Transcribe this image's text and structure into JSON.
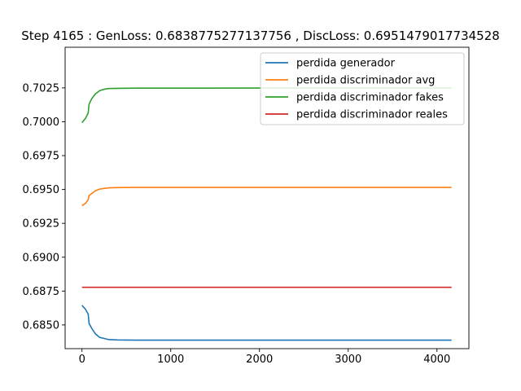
{
  "chart_data": {
    "type": "line",
    "title": "Step 4165 : GenLoss: 0.6838775277137756 , DiscLoss: 0.6951479017734528",
    "xlabel": "",
    "ylabel": "",
    "xlim": [
      -190,
      4360
    ],
    "ylim": [
      0.68325,
      0.7055
    ],
    "xticks": [
      0,
      1000,
      2000,
      3000,
      4000
    ],
    "xtick_labels": [
      "0",
      "1000",
      "2000",
      "3000",
      "4000"
    ],
    "yticks": [
      0.685,
      0.6875,
      0.69,
      0.6925,
      0.695,
      0.6975,
      0.7,
      0.7025
    ],
    "ytick_labels": [
      "0.6850",
      "0.6875",
      "0.6900",
      "0.6925",
      "0.6950",
      "0.6975",
      "0.7000",
      "0.7025"
    ],
    "grid": false,
    "legend_position": "top-right",
    "series": [
      {
        "name": "perdida generador",
        "color": "#1f77b4",
        "x": [
          0,
          40,
          70,
          80,
          110,
          150,
          200,
          250,
          300,
          400,
          600,
          1000,
          2000,
          3000,
          4165
        ],
        "y": [
          0.68645,
          0.68615,
          0.6858,
          0.6851,
          0.68475,
          0.68435,
          0.68408,
          0.684,
          0.68392,
          0.68389,
          0.68388,
          0.68388,
          0.68388,
          0.68388,
          0.68388
        ]
      },
      {
        "name": "perdida discriminador avg",
        "color": "#ff7f0e",
        "x": [
          0,
          40,
          70,
          80,
          110,
          150,
          200,
          250,
          300,
          400,
          600,
          1000,
          2000,
          3000,
          4165
        ],
        "y": [
          0.6938,
          0.69398,
          0.69425,
          0.69455,
          0.6947,
          0.6949,
          0.69503,
          0.69508,
          0.69512,
          0.69514,
          0.69515,
          0.69515,
          0.69515,
          0.69515,
          0.69515
        ]
      },
      {
        "name": "perdida discriminador fakes",
        "color": "#2ca02c",
        "x": [
          0,
          40,
          70,
          80,
          110,
          150,
          200,
          250,
          300,
          400,
          600,
          1000,
          2000,
          3000,
          4165
        ],
        "y": [
          0.69993,
          0.70025,
          0.70065,
          0.7013,
          0.7017,
          0.70205,
          0.7023,
          0.7024,
          0.70245,
          0.70247,
          0.70248,
          0.70248,
          0.70249,
          0.70249,
          0.70249
        ]
      },
      {
        "name": "perdida discriminador reales",
        "color": "#d62728",
        "x": [
          0,
          4165
        ],
        "y": [
          0.68778,
          0.68778
        ]
      }
    ]
  }
}
